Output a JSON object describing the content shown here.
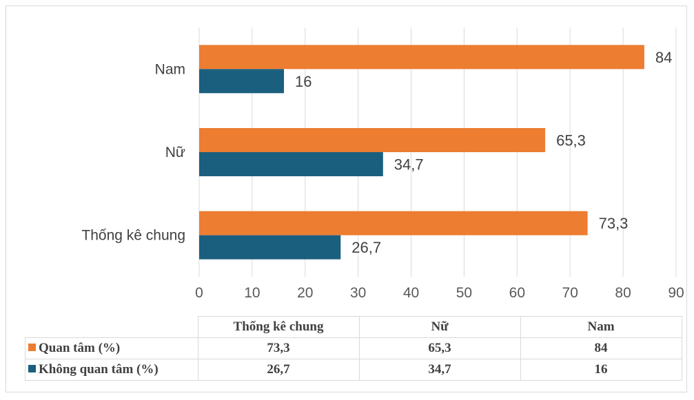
{
  "chart_data": {
    "type": "bar",
    "orientation": "horizontal",
    "categories": [
      "Thống kê chung",
      "Nữ",
      "Nam"
    ],
    "series": [
      {
        "name": "Quan tâm (%)",
        "values": [
          73.3,
          65.3,
          84
        ],
        "labels": [
          "73,3",
          "65,3",
          "84"
        ],
        "color": "#ED7D31"
      },
      {
        "name": "Không quan tâm (%)",
        "values": [
          26.7,
          34.7,
          16
        ],
        "labels": [
          "26,7",
          "34,7",
          "16"
        ],
        "color": "#1B5F7F"
      }
    ],
    "xlim": [
      0,
      90
    ],
    "xticks": [
      "0",
      "10",
      "20",
      "30",
      "40",
      "50",
      "60",
      "70",
      "80",
      "90"
    ],
    "grid": true,
    "data_table": {
      "headers": [
        "Thống kê chung",
        "Nữ",
        "Nam"
      ],
      "rows": [
        {
          "label": "Quan tâm (%)",
          "values": [
            "73,3",
            "65,3",
            "84"
          ]
        },
        {
          "label": "Không quan tâm (%)",
          "values": [
            "26,7",
            "34,7",
            "16"
          ]
        }
      ]
    }
  }
}
